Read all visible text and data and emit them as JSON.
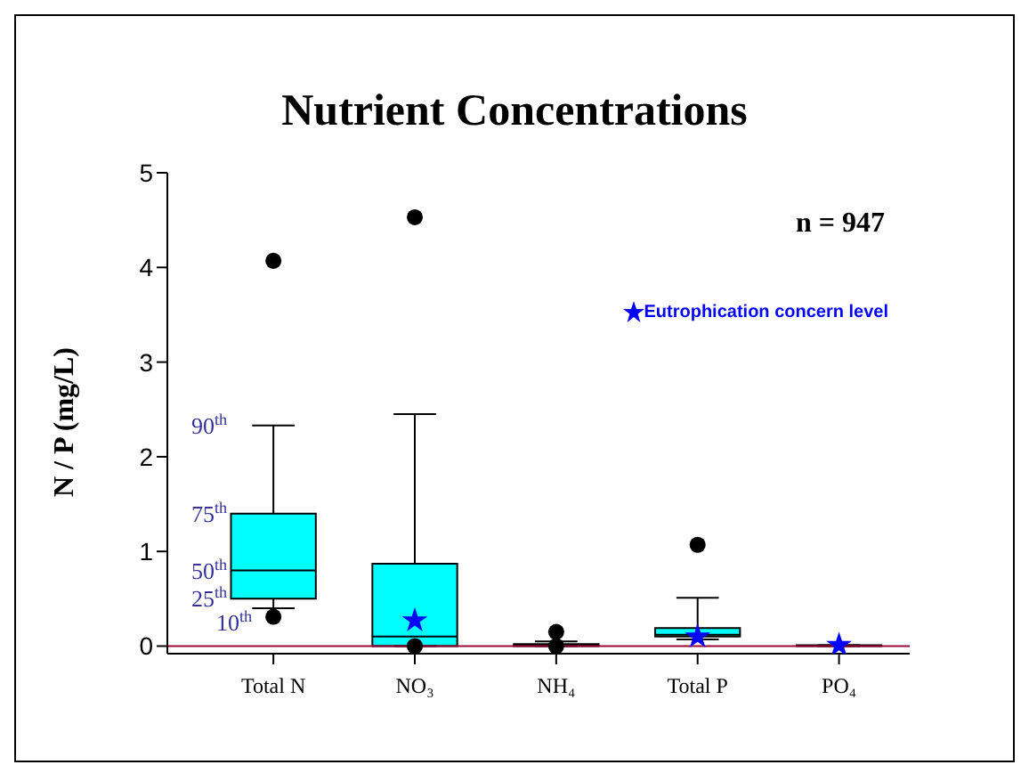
{
  "chart_data": {
    "type": "box",
    "title": "Nutrient Concentrations",
    "ylabel": "N / P (mg/L)",
    "categories": [
      "Total N",
      "NO₃",
      "NH₄",
      "Total P",
      "PO₄"
    ],
    "series": [
      {
        "color": "#00ffff",
        "boxes": [
          {
            "low": 0.4,
            "q1": 0.5,
            "median": 0.8,
            "q3": 1.4,
            "high": 2.33,
            "outliers": [
              4.07,
              0.31
            ]
          },
          {
            "low": 0,
            "q1": 0,
            "median": 0.1,
            "q3": 0.87,
            "high": 2.45,
            "outliers": [
              4.53,
              0
            ]
          },
          {
            "low": 0,
            "q1": 0,
            "median": 0.01,
            "q3": 0.02,
            "high": 0.05,
            "outliers": [
              0.15,
              0
            ]
          },
          {
            "low": 0.07,
            "q1": 0.1,
            "median": 0.12,
            "q3": 0.19,
            "high": 0.51,
            "outliers": [
              1.07
            ]
          },
          {
            "low": 0,
            "q1": 0,
            "median": 0.005,
            "q3": 0.01,
            "high": 0.01
          }
        ]
      },
      {
        "type": "scatter",
        "name": "Eutrophication concern level",
        "color": "#0000ff",
        "marker": "star",
        "x": [
          "NO₃",
          "Total P",
          "PO₄"
        ],
        "values": [
          0.27,
          0.1,
          0.01
        ]
      }
    ],
    "ylim": [
      -0.08,
      5
    ],
    "yticks": [
      0,
      1,
      2,
      3,
      4,
      5
    ],
    "grid": false,
    "legend": "top right",
    "ref_lines": [
      {
        "axis": "y",
        "value": 0,
        "color": "#990033"
      }
    ],
    "annotations": [
      "n = 947",
      {
        "text": "90$^{th}$",
        "x": "Total N",
        "y": 2.33
      },
      {
        "text": "75$^{th}$",
        "x": "Total N",
        "y": 1.4
      },
      {
        "text": "50$^{th}$",
        "x": "Total N",
        "y": 0.8
      },
      {
        "text": "25$^{th}$",
        "x": "Total N",
        "y": 0.5
      },
      {
        "text": "10$^{th}$",
        "x": "Total N",
        "y": 0.4
      }
    ]
  }
}
